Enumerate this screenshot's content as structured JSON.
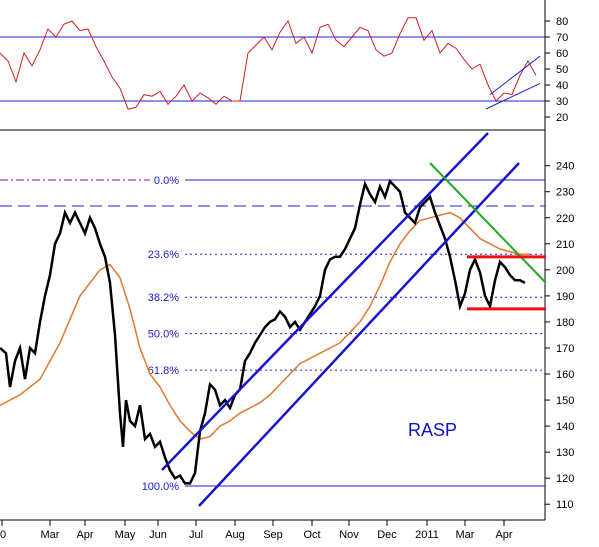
{
  "chart_data": [
    {
      "type": "line",
      "title": "",
      "panel": "indicator",
      "ylim": [
        15,
        90
      ],
      "y_ticks": [
        "20",
        "30",
        "40",
        "50",
        "60",
        "70",
        "80"
      ],
      "reference_levels": [
        30,
        70
      ],
      "grid": false,
      "colors": {
        "line": "#cc2222",
        "reference": "#2020cc",
        "channel": "#2020cc"
      },
      "series": [
        {
          "x": [
            0,
            8,
            16,
            24,
            32,
            40,
            48,
            56,
            64,
            72,
            80,
            88,
            96,
            104,
            112,
            120,
            128,
            136,
            144,
            152,
            160,
            168,
            176,
            184,
            192,
            200,
            208,
            216,
            224,
            232,
            240,
            248,
            256,
            264,
            272,
            280,
            288,
            296,
            304,
            312,
            320,
            328,
            336,
            344,
            352,
            360,
            368,
            376,
            384,
            392,
            400,
            408,
            416,
            424,
            432,
            440,
            448,
            456,
            464,
            472,
            480,
            488,
            496,
            504,
            512,
            520,
            528,
            536
          ],
          "values": [
            60,
            55,
            42,
            60,
            52,
            62,
            75,
            70,
            78,
            80,
            74,
            75,
            64,
            55,
            45,
            38,
            25,
            26,
            34,
            33,
            36,
            28,
            33,
            40,
            30,
            35,
            32,
            28,
            33,
            30,
            30,
            60,
            65,
            70,
            62,
            73,
            80,
            66,
            70,
            60,
            76,
            78,
            68,
            64,
            70,
            76,
            74,
            62,
            58,
            60,
            72,
            82,
            82,
            68,
            74,
            60,
            66,
            63,
            56,
            50,
            53,
            40,
            30,
            35,
            34,
            46,
            55,
            46
          ]
        }
      ],
      "channel": {
        "upper": [
          [
            490,
            34
          ],
          [
            540,
            58
          ]
        ],
        "lower": [
          [
            486,
            25
          ],
          [
            540,
            41
          ]
        ]
      }
    },
    {
      "type": "line",
      "title": "",
      "panel": "price",
      "ylim": [
        105,
        248
      ],
      "y_ticks": [
        "110",
        "120",
        "130",
        "140",
        "150",
        "160",
        "170",
        "180",
        "190",
        "200",
        "210",
        "220",
        "230",
        "240"
      ],
      "x_tick_labels": [
        "0",
        "Mar",
        "Apr",
        "May",
        "Jun",
        "Jul",
        "Aug",
        "Sep",
        "Oct",
        "Nov",
        "Dec",
        "2011",
        "Mar",
        "Apr"
      ],
      "grid": false,
      "annotation": "RASP",
      "fib_levels": [
        {
          "label": "0.0%",
          "value": 234.5
        },
        {
          "label": "23.6%",
          "value": 206
        },
        {
          "label": "38.2%",
          "value": 189.5
        },
        {
          "label": "50.0%",
          "value": 175.5
        },
        {
          "label": "61.8%",
          "value": 161.5
        },
        {
          "label": "100.0%",
          "value": 117
        }
      ],
      "dashed_levels": [
        234.5,
        224.5
      ],
      "support_resistance": [
        205,
        185
      ],
      "colors": {
        "price": "#000000",
        "moving_average": "#e07830",
        "channel": "#1515d0",
        "fib": "#2020cc",
        "downtrend": "#22aa22",
        "support": "#ee1111"
      },
      "series": [
        {
          "name": "",
          "x": [
            0,
            6,
            10,
            15,
            20,
            25,
            30,
            35,
            40,
            45,
            50,
            55,
            60,
            65,
            70,
            75,
            80,
            85,
            90,
            95,
            100,
            105,
            110,
            115,
            120,
            123,
            126,
            130,
            135,
            140,
            145,
            150,
            155,
            160,
            165,
            170,
            175,
            180,
            185,
            190,
            195,
            200,
            205,
            210,
            215,
            220,
            225,
            230,
            235,
            240,
            245,
            250,
            255,
            260,
            265,
            270,
            275,
            280,
            285,
            290,
            295,
            300,
            305,
            310,
            315,
            320,
            325,
            330,
            335,
            340,
            345,
            350,
            355,
            360,
            365,
            370,
            375,
            380,
            385,
            390,
            395,
            400,
            405,
            410,
            415,
            420,
            425,
            430,
            435,
            440,
            445,
            450,
            455,
            460,
            465,
            470,
            475,
            480,
            485,
            490,
            495,
            500,
            505,
            510,
            515,
            520,
            525
          ],
          "values": [
            170,
            168,
            155,
            165,
            170,
            158,
            170,
            168,
            180,
            190,
            198,
            210,
            214,
            222,
            218,
            222,
            218,
            214,
            220,
            216,
            210,
            205,
            195,
            175,
            145,
            132,
            150,
            142,
            140,
            148,
            135,
            137,
            132,
            134,
            128,
            123,
            120,
            121,
            118,
            118,
            122,
            138,
            145,
            156,
            154,
            148,
            150,
            147,
            152,
            154,
            165,
            168,
            172,
            175,
            178,
            180,
            181,
            184,
            182,
            178,
            180,
            177,
            180,
            183,
            186,
            190,
            200,
            204,
            205,
            205,
            208,
            212,
            216,
            225,
            233,
            229,
            226,
            232,
            228,
            234,
            232,
            230,
            222,
            220,
            218,
            224,
            226,
            228,
            222,
            217,
            212,
            205,
            196,
            186,
            191,
            200,
            204,
            199,
            190,
            186,
            196,
            203,
            201,
            198,
            196,
            196,
            195
          ]
        },
        {
          "name": "",
          "x": [
            0,
            20,
            40,
            60,
            80,
            100,
            110,
            120,
            130,
            140,
            150,
            160,
            170,
            180,
            190,
            200,
            210,
            220,
            230,
            240,
            250,
            260,
            270,
            280,
            290,
            300,
            310,
            320,
            330,
            340,
            350,
            360,
            370,
            380,
            390,
            400,
            410,
            420,
            430,
            440,
            450,
            460,
            470,
            480,
            490,
            500,
            510,
            520,
            530
          ],
          "values": [
            148,
            152,
            158,
            172,
            190,
            200,
            202,
            197,
            185,
            170,
            160,
            155,
            148,
            142,
            138,
            135,
            136,
            140,
            142,
            145,
            147,
            149,
            152,
            156,
            160,
            164,
            166,
            168,
            170,
            172,
            176,
            180,
            186,
            194,
            203,
            210,
            215,
            219,
            220,
            221,
            222,
            220,
            216,
            212,
            210,
            208,
            207,
            206,
            206
          ]
        }
      ]
    }
  ]
}
